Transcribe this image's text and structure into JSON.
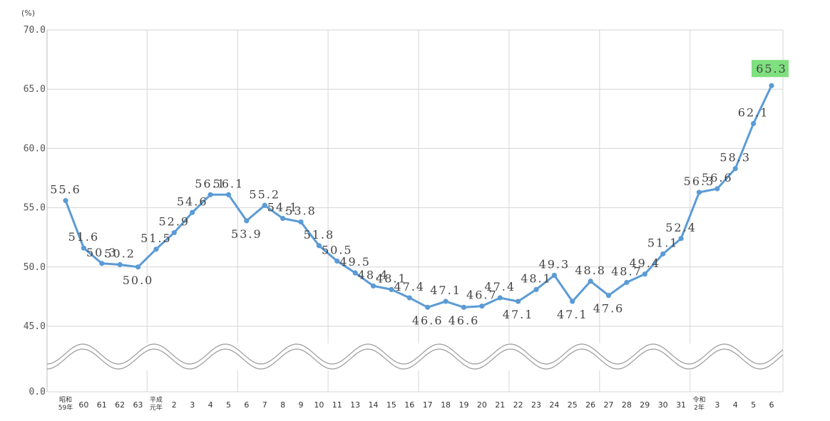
{
  "chart_data": {
    "type": "line",
    "unit_label": "(%)",
    "y_axis": {
      "ticks": [
        "0.0",
        "45.0",
        "50.0",
        "55.0",
        "60.0",
        "65.0",
        "70.0"
      ],
      "broken": true,
      "range_above_break": [
        45,
        70
      ]
    },
    "categories": [
      "昭和59年",
      "60",
      "61",
      "62",
      "63",
      "平成元年",
      "2",
      "3",
      "4",
      "5",
      "6",
      "7",
      "8",
      "9",
      "10",
      "11",
      "13",
      "14",
      "15",
      "16",
      "17",
      "18",
      "19",
      "20",
      "21",
      "22",
      "23",
      "24",
      "25",
      "26",
      "27",
      "28",
      "29",
      "30",
      "31",
      "令和2年",
      "3",
      "4",
      "5",
      "6"
    ],
    "series": [
      {
        "values": [
          55.6,
          51.6,
          50.3,
          50.2,
          50.0,
          51.5,
          52.9,
          54.6,
          56.1,
          56.1,
          53.9,
          55.2,
          54.1,
          53.8,
          51.8,
          50.5,
          49.5,
          48.4,
          48.1,
          47.4,
          46.6,
          47.1,
          46.6,
          46.7,
          47.4,
          47.1,
          48.1,
          49.3,
          47.1,
          48.8,
          47.6,
          48.7,
          49.4,
          51.1,
          52.4,
          56.3,
          56.6,
          58.3,
          62.1,
          65.3
        ],
        "color": "#5b9bd5"
      }
    ],
    "data_labels": [
      "55.6",
      "51.6",
      "50.3",
      "50.2",
      "50.0",
      "51.5",
      "52.9",
      "54.6",
      "56.1",
      "56.1",
      "53.9",
      "55.2",
      "54.1",
      "53.8",
      "51.8",
      "50.5",
      "49.5",
      "48.4",
      "48.1",
      "47.4",
      "46.6",
      "47.1",
      "46.6",
      "46.7",
      "47.4",
      "47.1",
      "48.1",
      "49.3",
      "47.1",
      "48.8",
      "47.6",
      "48.7",
      "49.4",
      "51.1",
      "52.4",
      "56.3",
      "56.6",
      "58.3",
      "62.1",
      "65.3"
    ],
    "highlight": {
      "index": 39,
      "color": "#7ee07e"
    },
    "grid": true,
    "line_color": "#5b9bd5",
    "grid_color": "#d6d6d6"
  }
}
